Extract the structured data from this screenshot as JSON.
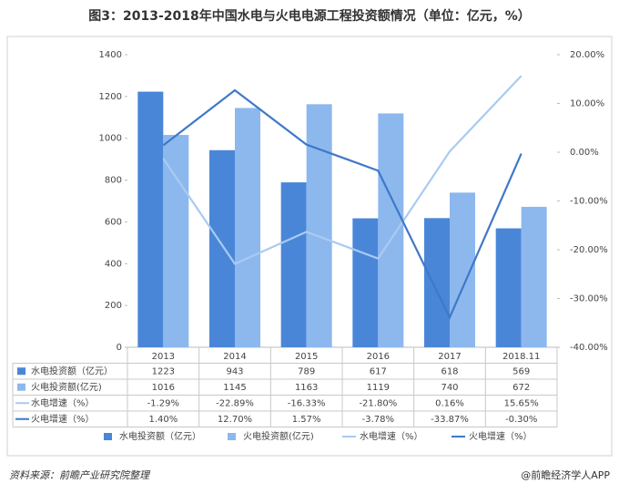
{
  "chart_data": {
    "type": "bar-line-table",
    "title": "图3：2013-2018年中国水电与火电电源工程投资额情况（单位：亿元，%）",
    "source": "资料来源：前瞻产业研究院整理",
    "credit": "@前瞻经济学人APP",
    "categories": [
      "2013",
      "2014",
      "2015",
      "2016",
      "2017",
      "2018.11"
    ],
    "series": [
      {
        "name": "水电投资额（亿元）",
        "type": "bar",
        "color": "#4a86d8",
        "values": [
          1223,
          943,
          789,
          617,
          618,
          569
        ]
      },
      {
        "name": "火电投资额(亿元)",
        "type": "bar",
        "color": "#8db8ee",
        "values": [
          1016,
          1145,
          1163,
          1119,
          740,
          672
        ]
      },
      {
        "name": "水电增速（%）",
        "type": "line",
        "axis": "y2",
        "color": "#a9caf2",
        "values": [
          -1.29,
          -22.89,
          -16.33,
          -21.8,
          0.16,
          15.65
        ],
        "value_labels": [
          "-1.29%",
          "-22.89%",
          "-16.33%",
          "-21.80%",
          "0.16%",
          "15.65%"
        ]
      },
      {
        "name": "火电增速（%）",
        "type": "line",
        "axis": "y2",
        "color": "#3f78c8",
        "values": [
          1.4,
          12.7,
          1.57,
          -3.78,
          -33.87,
          -0.3
        ],
        "value_labels": [
          "1.40%",
          "12.70%",
          "1.57%",
          "-3.78%",
          "-33.87%",
          "-0.30%"
        ]
      }
    ],
    "ylim": [
      0,
      1400
    ],
    "yticks": [
      0,
      200,
      400,
      600,
      800,
      1000,
      1200,
      1400
    ],
    "y2lim": [
      -40,
      20
    ],
    "y2ticks": [
      {
        "value": -40,
        "label": "-40.00%"
      },
      {
        "value": -30,
        "label": "-30.00%"
      },
      {
        "value": -20,
        "label": "-20.00%"
      },
      {
        "value": -10,
        "label": "-10.00%"
      },
      {
        "value": 0,
        "label": "0.00%"
      },
      {
        "value": 10,
        "label": "10.00%"
      },
      {
        "value": 20,
        "label": "20.00%"
      }
    ],
    "grid": false
  }
}
